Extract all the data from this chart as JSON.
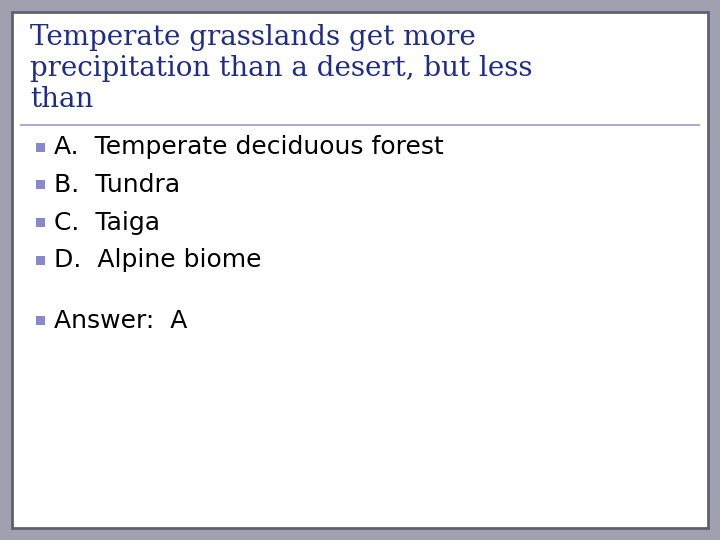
{
  "title_lines": [
    "Temperate grasslands get more",
    "precipitation than a desert, but less",
    "than"
  ],
  "title_color": "#1F2D8A",
  "title_fontsize": 20,
  "options": [
    "A.  Temperate deciduous forest",
    "B.  Tundra",
    "C.  Taiga",
    "D.  Alpine biome"
  ],
  "answer_line": "Answer:  A",
  "option_fontsize": 18,
  "answer_fontsize": 18,
  "bullet_color": "#8888CC",
  "text_color": "#000000",
  "outer_bg_color": "#A0A0B0",
  "inner_bg_color": "#FFFFFF",
  "border_color": "#606070",
  "divider_color": "#9999CC",
  "title_font": "serif",
  "body_font": "sans-serif"
}
